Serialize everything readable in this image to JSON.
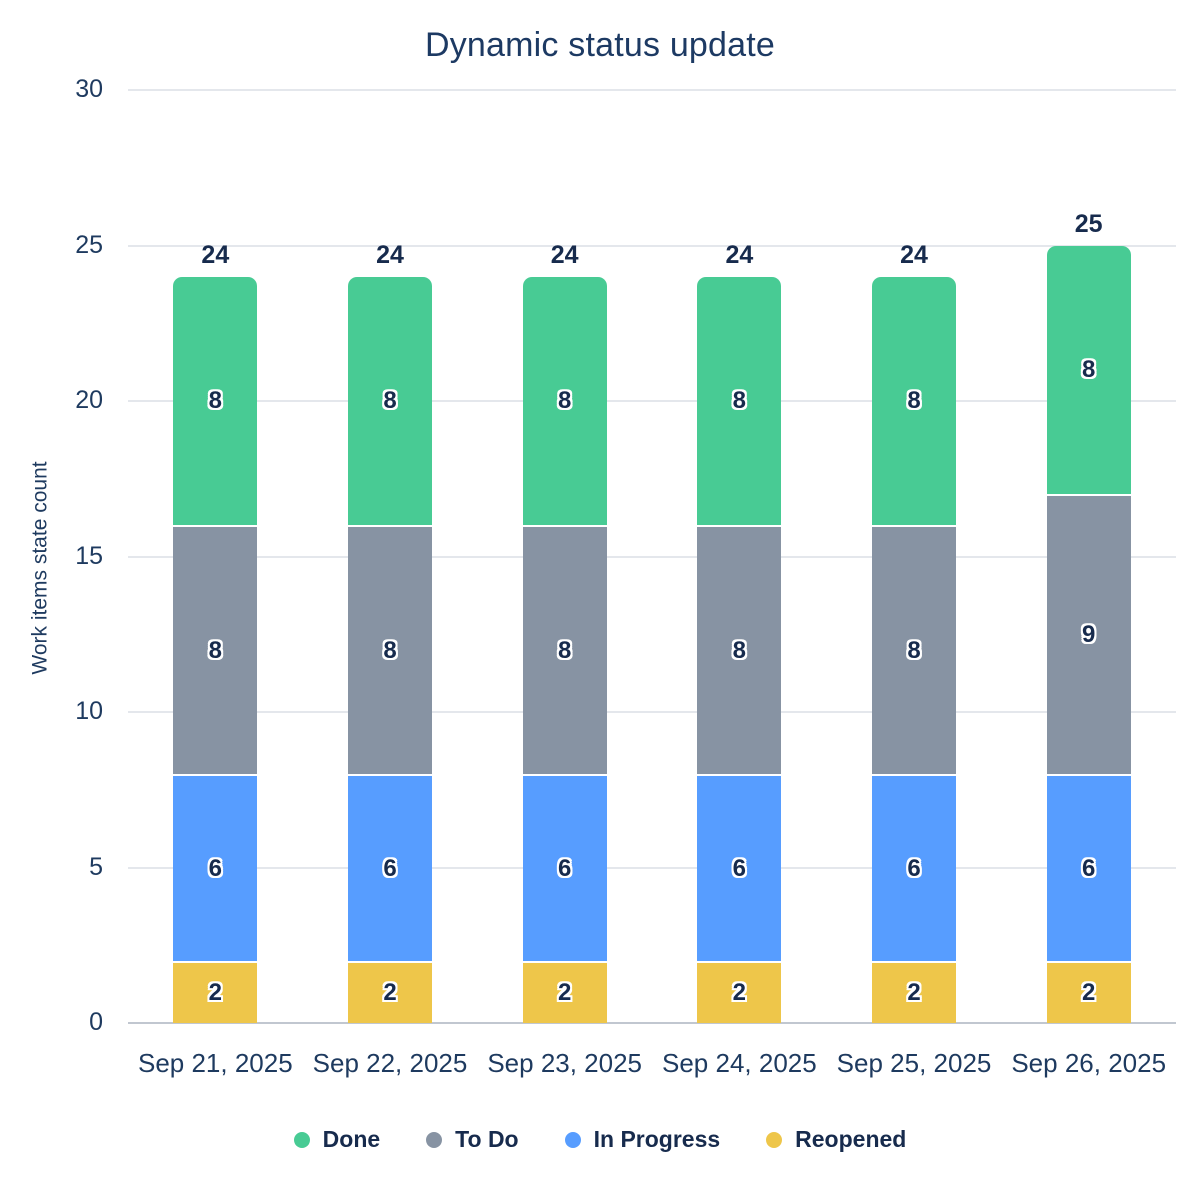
{
  "chart_data": {
    "type": "bar",
    "stacked": true,
    "title": "Dynamic status update",
    "xlabel": "",
    "ylabel": "Work items state count",
    "categories": [
      "Sep 21, 2025",
      "Sep 22, 2025",
      "Sep 23, 2025",
      "Sep 24, 2025",
      "Sep 25, 2025",
      "Sep 26, 2025"
    ],
    "series": [
      {
        "name": "Done",
        "color": "#48CB94",
        "values": [
          8,
          8,
          8,
          8,
          8,
          8
        ]
      },
      {
        "name": "To Do",
        "color": "#8793A3",
        "values": [
          8,
          8,
          8,
          8,
          8,
          9
        ]
      },
      {
        "name": "In Progress",
        "color": "#579DFF",
        "values": [
          6,
          6,
          6,
          6,
          6,
          6
        ]
      },
      {
        "name": "Reopened",
        "color": "#EEC64A",
        "values": [
          2,
          2,
          2,
          2,
          2,
          2
        ]
      }
    ],
    "stack_order_bottom_to_top": [
      "Reopened",
      "In Progress",
      "To Do",
      "Done"
    ],
    "totals": [
      24,
      24,
      24,
      24,
      24,
      25
    ],
    "yticks": [
      0,
      5,
      10,
      15,
      20,
      25,
      30
    ],
    "ylim": [
      0,
      30
    ],
    "grid": true,
    "legend_position": "bottom",
    "legend": [
      "Done",
      "To Do",
      "In Progress",
      "Reopened"
    ]
  },
  "colors": {
    "title_text": "#1D3A63",
    "axis_text": "#1E3A5F",
    "value_text": "#172B4D",
    "gridline": "#E4E7EC",
    "baseline": "#C1C7D0",
    "background": "#FFFFFF"
  }
}
